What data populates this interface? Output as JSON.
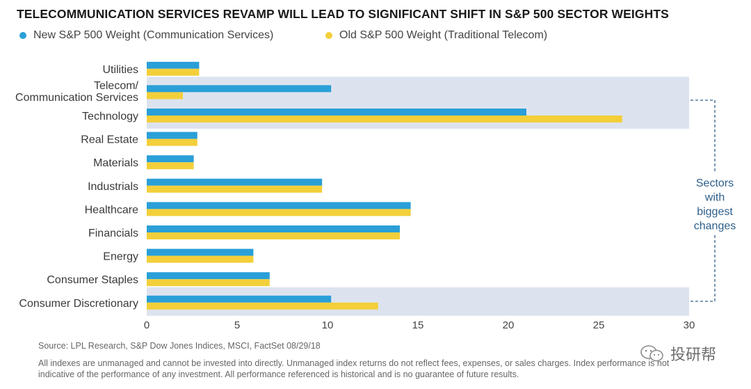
{
  "title": "TELECOMMUNICATION SERVICES REVAMP WILL LEAD TO SIGNIFICANT SHIFT IN S&P 500 SECTOR WEIGHTS",
  "legend": {
    "new": "New S&P 500 Weight (Communication Services)",
    "old": "Old S&P 500 Weight (Traditional Telecom)"
  },
  "colors": {
    "new": "#2a9fd8",
    "old": "#f3cf3a",
    "highlight": "#dde3ee",
    "bracket": "#2e5f8a"
  },
  "chart_data": {
    "type": "bar",
    "orientation": "horizontal",
    "categories": [
      "Utilities",
      "Telecom/\nCommunication Services",
      "Technology",
      "Real Estate",
      "Materials",
      "Industrials",
      "Healthcare",
      "Financials",
      "Energy",
      "Consumer Staples",
      "Consumer Discretionary"
    ],
    "series": [
      {
        "name": "New S&P 500 Weight (Communication Services)",
        "values": [
          2.9,
          10.2,
          21.0,
          2.8,
          2.6,
          9.7,
          14.6,
          14.0,
          5.9,
          6.8,
          10.2
        ]
      },
      {
        "name": "Old S&P 500 Weight (Traditional Telecom)",
        "values": [
          2.9,
          2.0,
          26.3,
          2.8,
          2.6,
          9.7,
          14.6,
          14.0,
          5.9,
          6.8,
          12.8
        ]
      }
    ],
    "xlim": [
      0,
      30
    ],
    "xticks": [
      0,
      5,
      10,
      15,
      20,
      25,
      30
    ],
    "highlighted": [
      "Telecom/\nCommunication Services",
      "Technology",
      "Consumer Discretionary"
    ],
    "annotation": "Sectors\nwith\nbiggest\nchanges"
  },
  "source": "Source: LPL Research, S&P Dow Jones Indices, MSCI, FactSet   08/29/18",
  "disclaimer": "All indexes are unmanaged and cannot be invested into directly. Unmanaged index returns do not reflect fees, expenses, or sales charges. Index performance is not indicative of the performance of any investment. All performance referenced is historical and is no guarantee of future results.",
  "watermark": "投研帮"
}
